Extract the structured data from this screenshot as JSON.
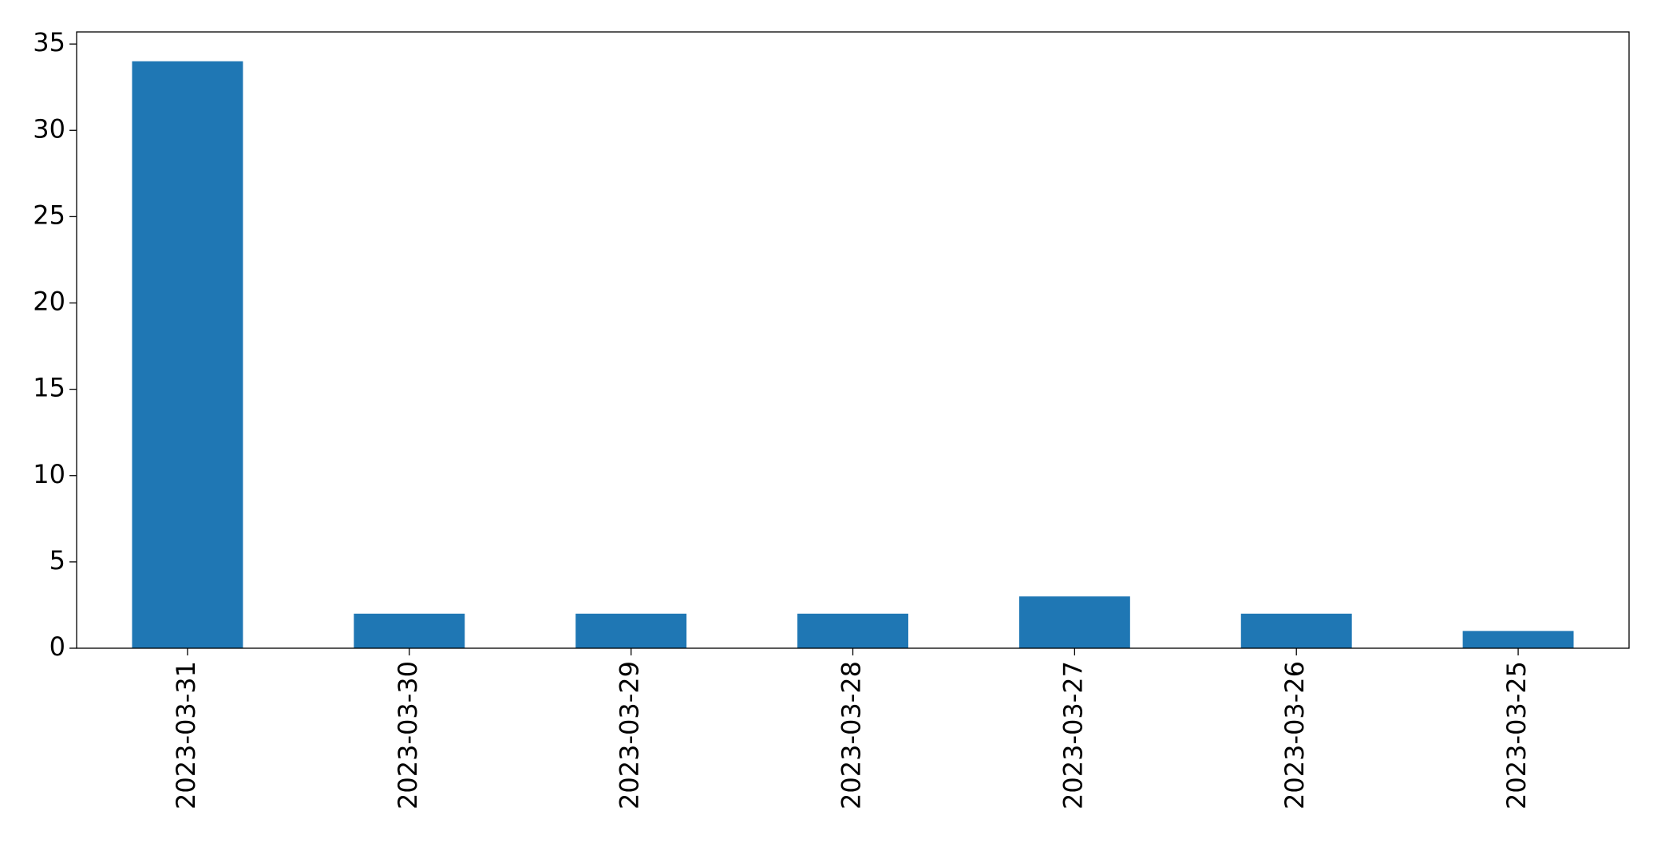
{
  "chart_data": {
    "type": "bar",
    "categories": [
      "2023-03-31",
      "2023-03-30",
      "2023-03-29",
      "2023-03-28",
      "2023-03-27",
      "2023-03-26",
      "2023-03-25"
    ],
    "values": [
      34,
      2,
      2,
      2,
      3,
      2,
      1
    ],
    "color": "#1f77b4",
    "ylim": [
      0,
      35.7
    ],
    "yticks": [
      0,
      5,
      10,
      15,
      20,
      25,
      30,
      35
    ],
    "grid": false
  }
}
